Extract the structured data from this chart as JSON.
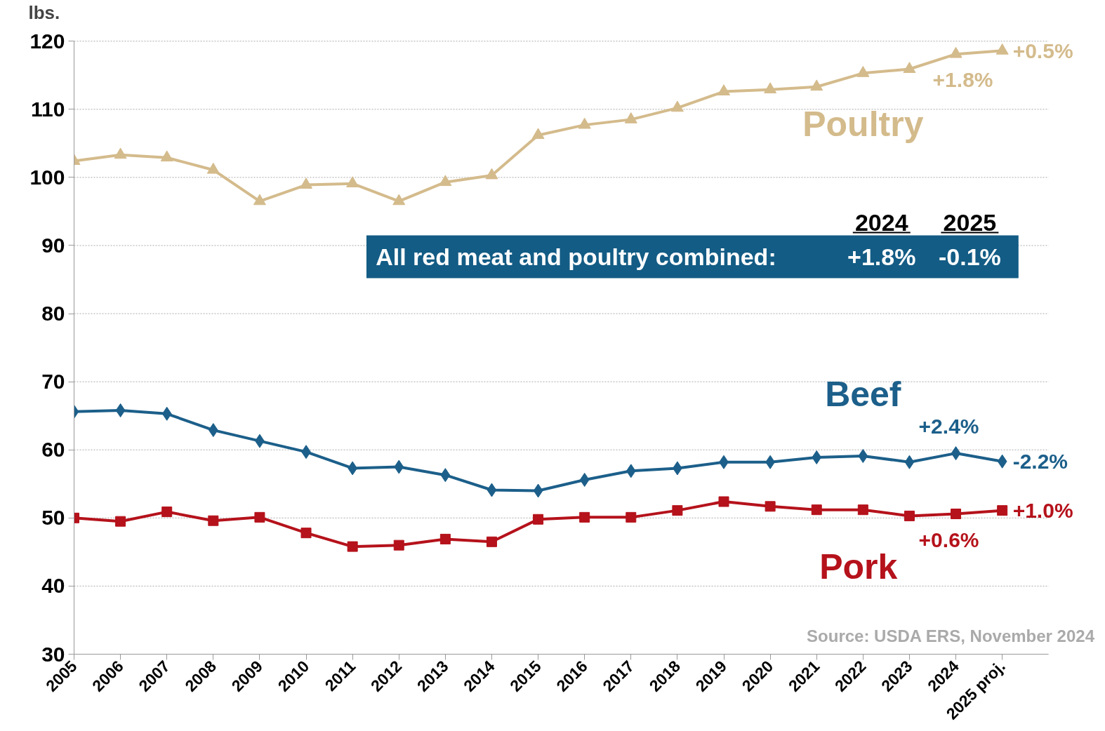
{
  "chart_data": {
    "type": "line",
    "ylabel": "lbs.",
    "categories": [
      "2005",
      "2006",
      "2007",
      "2008",
      "2009",
      "2010",
      "2011",
      "2012",
      "2013",
      "2014",
      "2015",
      "2016",
      "2017",
      "2018",
      "2019",
      "2020",
      "2021",
      "2022",
      "2023",
      "2024",
      "2025 proj."
    ],
    "series": [
      {
        "name": "Poultry",
        "color": "#d4bb8c",
        "marker": "triangle",
        "values": [
          102.4,
          103.3,
          102.9,
          101.1,
          96.5,
          98.9,
          99.1,
          96.5,
          99.3,
          100.3,
          106.2,
          107.7,
          108.5,
          110.2,
          112.6,
          112.9,
          113.3,
          115.3,
          115.9,
          118.1,
          118.6
        ]
      },
      {
        "name": "Beef",
        "color": "#1c5f8a",
        "marker": "diamond",
        "values": [
          65.6,
          65.8,
          65.3,
          62.9,
          61.3,
          59.7,
          57.3,
          57.5,
          56.3,
          54.1,
          54.0,
          55.6,
          56.9,
          57.3,
          58.2,
          58.2,
          58.9,
          59.1,
          58.2,
          59.5,
          58.3
        ]
      },
      {
        "name": "Pork",
        "color": "#b5121b",
        "marker": "square",
        "values": [
          50.0,
          49.5,
          50.9,
          49.6,
          50.1,
          47.8,
          45.8,
          46.0,
          46.9,
          46.5,
          49.8,
          50.1,
          50.1,
          51.1,
          52.4,
          51.7,
          51.2,
          51.2,
          50.3,
          50.6,
          51.1
        ]
      }
    ],
    "ylim": [
      30,
      120
    ],
    "yticks": [
      30,
      40,
      50,
      60,
      70,
      80,
      90,
      100,
      110,
      120
    ],
    "grid": "y",
    "line_style": "solid",
    "annotations": [
      "2024",
      "2025",
      "All red meat and poultry combined:",
      "+1.8%",
      "-0.1%",
      "Source: USDA ERS, November 2024",
      {
        "text": "+1.8%",
        "x": "2024",
        "y": 118.1
      },
      {
        "text": "+0.5%",
        "x": "2025 proj.",
        "y": 118.6
      },
      {
        "text": "+2.4%",
        "x": "2024",
        "y": 59.5
      },
      {
        "text": "-2.2%",
        "x": "2025 proj.",
        "y": 58.3
      },
      {
        "text": "+0.6%",
        "x": "2024",
        "y": 50.6
      },
      {
        "text": "+1.0%",
        "x": "2025 proj.",
        "y": 51.1
      }
    ]
  }
}
